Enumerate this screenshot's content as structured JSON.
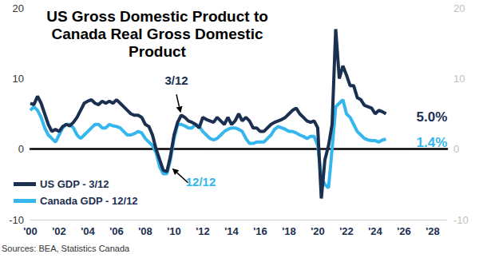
{
  "chart_data": {
    "type": "line",
    "title": "US Gross Domestic Product to\nCanada Real Gross Domestic\nProduct",
    "caption": "Sources: BEA, Statistics Canada",
    "x": [
      2000,
      2000.25,
      2000.5,
      2000.75,
      2001,
      2001.25,
      2001.5,
      2001.75,
      2002,
      2002.25,
      2002.5,
      2002.75,
      2003,
      2003.25,
      2003.5,
      2003.75,
      2004,
      2004.25,
      2004.5,
      2004.75,
      2005,
      2005.25,
      2005.5,
      2005.75,
      2006,
      2006.25,
      2006.5,
      2006.75,
      2007,
      2007.25,
      2007.5,
      2007.75,
      2008,
      2008.25,
      2008.5,
      2008.75,
      2009,
      2009.25,
      2009.5,
      2009.75,
      2010,
      2010.25,
      2010.5,
      2010.75,
      2011,
      2011.25,
      2011.5,
      2011.75,
      2012,
      2012.25,
      2012.5,
      2012.75,
      2013,
      2013.25,
      2013.5,
      2013.75,
      2014,
      2014.25,
      2014.5,
      2014.75,
      2015,
      2015.25,
      2015.5,
      2015.75,
      2016,
      2016.25,
      2016.5,
      2016.75,
      2017,
      2017.25,
      2017.5,
      2017.75,
      2018,
      2018.25,
      2018.5,
      2018.75,
      2019,
      2019.25,
      2019.5,
      2019.75,
      2020,
      2020.25,
      2020.5,
      2020.75,
      2021,
      2021.25,
      2021.5,
      2021.75,
      2022,
      2022.25,
      2022.5,
      2022.75,
      2023,
      2023.25,
      2023.5,
      2023.75,
      2024,
      2024.25,
      2024.5,
      2024.75
    ],
    "series": [
      {
        "name": "US GDP - 3/12",
        "color": "#1b2f50",
        "end_label": "5.0%",
        "values": [
          6.5,
          6.3,
          7.5,
          6.5,
          5.0,
          3.5,
          2.5,
          2.8,
          2.5,
          3.2,
          3.5,
          3.3,
          3.8,
          4.5,
          5.5,
          6.5,
          6.8,
          7.0,
          6.5,
          6.3,
          6.8,
          6.5,
          6.8,
          6.5,
          7.0,
          6.5,
          6.0,
          5.5,
          5.0,
          4.8,
          4.8,
          4.5,
          3.5,
          3.2,
          2.0,
          0.0,
          -1.5,
          -3.0,
          -3.2,
          -1.0,
          2.0,
          3.8,
          4.8,
          4.5,
          4.0,
          3.8,
          3.5,
          3.0,
          4.5,
          4.2,
          4.0,
          3.8,
          4.5,
          4.0,
          3.5,
          4.5,
          3.5,
          4.0,
          5.0,
          4.0,
          4.5,
          4.0,
          3.0,
          3.0,
          2.5,
          2.5,
          3.0,
          3.5,
          3.8,
          4.0,
          4.2,
          4.5,
          5.0,
          5.5,
          5.8,
          5.0,
          4.5,
          4.0,
          3.8,
          4.0,
          3.0,
          -7.0,
          -1.5,
          0.5,
          3.5,
          17.0,
          10.0,
          11.8,
          10.5,
          9.0,
          9.0,
          7.3,
          7.0,
          6.2,
          6.0,
          5.8,
          5.0,
          5.5,
          5.3,
          5.0
        ]
      },
      {
        "name": "Canada GDP - 12/12",
        "color": "#35b6ec",
        "end_label": "1.4%",
        "values": [
          5.5,
          6.0,
          5.5,
          4.5,
          3.0,
          2.0,
          1.5,
          1.0,
          2.0,
          3.0,
          3.5,
          3.5,
          3.0,
          2.0,
          1.5,
          2.0,
          2.5,
          3.0,
          3.5,
          3.5,
          3.0,
          3.0,
          3.5,
          3.3,
          3.2,
          3.0,
          2.5,
          2.0,
          2.0,
          2.2,
          2.5,
          2.3,
          1.5,
          1.0,
          0.5,
          -0.5,
          -2.5,
          -3.5,
          -3.5,
          -1.5,
          1.5,
          3.5,
          3.5,
          3.3,
          3.0,
          3.0,
          3.5,
          3.2,
          2.5,
          2.0,
          1.5,
          1.3,
          1.5,
          2.0,
          2.5,
          2.8,
          3.0,
          3.0,
          2.8,
          2.5,
          1.5,
          0.8,
          0.8,
          1.0,
          1.0,
          1.0,
          1.5,
          2.0,
          2.8,
          3.2,
          3.0,
          2.8,
          2.5,
          2.5,
          2.3,
          2.0,
          1.8,
          1.5,
          1.8,
          1.8,
          0.5,
          -4.0,
          -5.0,
          -5.5,
          0.0,
          6.0,
          6.5,
          7.0,
          5.0,
          4.5,
          3.5,
          2.5,
          2.0,
          1.5,
          1.3,
          1.2,
          1.2,
          1.0,
          1.3,
          1.4
        ]
      }
    ],
    "annotations": [
      {
        "text": "3/12",
        "x": 2010.5,
        "y": 4.8,
        "series": "US GDP - 3/12"
      },
      {
        "text": "12/12",
        "x": 2009.75,
        "y": -2.5,
        "series": "Canada GDP - 12/12"
      }
    ],
    "xlim": [
      2000,
      2029
    ],
    "xticks": [
      {
        "value": 2000,
        "label": "'00"
      },
      {
        "value": 2002,
        "label": "'02"
      },
      {
        "value": 2004,
        "label": "'04"
      },
      {
        "value": 2006,
        "label": "'06"
      },
      {
        "value": 2008,
        "label": "'08"
      },
      {
        "value": 2010,
        "label": "'10"
      },
      {
        "value": 2012,
        "label": "'12"
      },
      {
        "value": 2014,
        "label": "'14"
      },
      {
        "value": 2016,
        "label": "'16"
      },
      {
        "value": 2018,
        "label": "'18"
      },
      {
        "value": 2020,
        "label": "'20"
      },
      {
        "value": 2022,
        "label": "'22"
      },
      {
        "value": 2024,
        "label": "'24"
      },
      {
        "value": 2026,
        "label": "'26"
      },
      {
        "value": 2028,
        "label": "'28"
      }
    ],
    "ylim": [
      -10,
      20
    ],
    "yticks": [
      -10,
      0,
      10,
      20
    ],
    "y2lim": [
      -10,
      20
    ],
    "y2ticks": [
      -10,
      0,
      10,
      20
    ],
    "grid": false,
    "legend": "lower left"
  }
}
